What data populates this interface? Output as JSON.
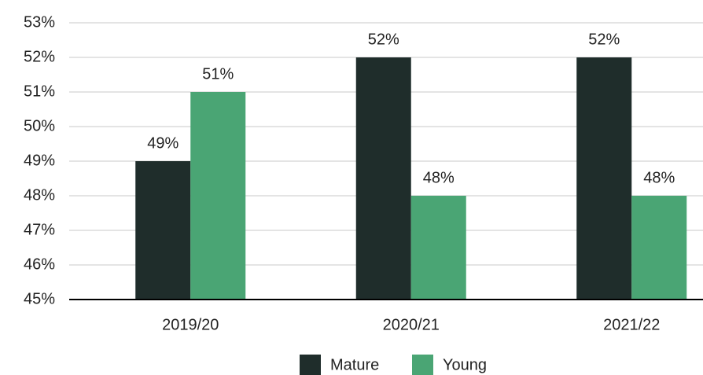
{
  "chart_data": {
    "type": "bar",
    "categories": [
      "2019/20",
      "2020/21",
      "2021/22"
    ],
    "series": [
      {
        "name": "Mature",
        "color": "#1f2d2b",
        "values": [
          49,
          52,
          52
        ],
        "value_labels": [
          "49%",
          "52%",
          "52%"
        ]
      },
      {
        "name": "Young",
        "color": "#4aa574",
        "values": [
          51,
          48,
          48
        ],
        "value_labels": [
          "51%",
          "48%",
          "48%"
        ]
      }
    ],
    "ylim": [
      45,
      53
    ],
    "yticks": [
      {
        "value": 45,
        "label": "45%"
      },
      {
        "value": 46,
        "label": "46%"
      },
      {
        "value": 47,
        "label": "47%"
      },
      {
        "value": 48,
        "label": "48%"
      },
      {
        "value": 49,
        "label": "49%"
      },
      {
        "value": 50,
        "label": "50%"
      },
      {
        "value": 51,
        "label": "51%"
      },
      {
        "value": 52,
        "label": "52%"
      },
      {
        "value": 53,
        "label": "53%"
      }
    ],
    "grid": true,
    "legend": "bottom"
  }
}
